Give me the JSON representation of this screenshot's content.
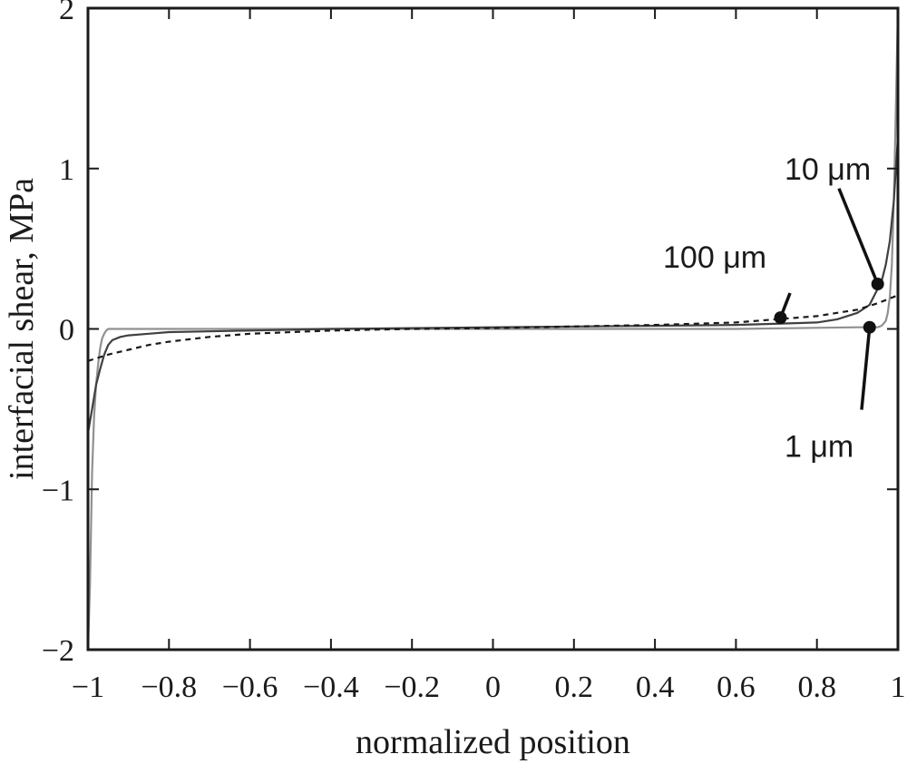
{
  "chart_data": {
    "type": "line",
    "title": "",
    "xlabel": "normalized position",
    "ylabel": "interfacial shear, MPa",
    "xlim": [
      -1,
      1
    ],
    "ylim": [
      -2,
      2
    ],
    "x_ticks": [
      {
        "value": -1,
        "label": "−1"
      },
      {
        "value": -0.8,
        "label": "−0.8"
      },
      {
        "value": -0.6,
        "label": "−0.6"
      },
      {
        "value": -0.4,
        "label": "−0.4"
      },
      {
        "value": -0.2,
        "label": "−0.2"
      },
      {
        "value": 0,
        "label": "0"
      },
      {
        "value": 0.2,
        "label": "0.2"
      },
      {
        "value": 0.4,
        "label": "0.4"
      },
      {
        "value": 0.6,
        "label": "0.6"
      },
      {
        "value": 0.8,
        "label": "0.8"
      },
      {
        "value": 1,
        "label": "1"
      }
    ],
    "y_ticks": [
      {
        "value": -2,
        "label": "−2"
      },
      {
        "value": -1,
        "label": "−1"
      },
      {
        "value": 0,
        "label": "0"
      },
      {
        "value": 1,
        "label": "1"
      },
      {
        "value": 2,
        "label": "2"
      }
    ],
    "grid": false,
    "legend": "none",
    "series": [
      {
        "name": "1 μm",
        "color": "#909090",
        "style": "solid",
        "points": [
          [
            -1,
            -2.0
          ],
          [
            -0.995,
            -1.6
          ],
          [
            -0.99,
            -0.9
          ],
          [
            -0.985,
            -0.55
          ],
          [
            -0.98,
            -0.35
          ],
          [
            -0.975,
            -0.22
          ],
          [
            -0.97,
            -0.12
          ],
          [
            -0.965,
            -0.06
          ],
          [
            -0.96,
            -0.03
          ],
          [
            -0.955,
            -0.01
          ],
          [
            -0.95,
            0.0
          ],
          [
            -0.9,
            0.0
          ],
          [
            -0.6,
            0.0
          ],
          [
            0,
            0.0
          ],
          [
            0.6,
            0.0
          ],
          [
            0.9,
            0.01
          ],
          [
            0.95,
            0.01
          ],
          [
            0.96,
            0.02
          ],
          [
            0.97,
            0.05
          ],
          [
            0.975,
            0.1
          ],
          [
            0.98,
            0.2
          ],
          [
            0.985,
            0.4
          ],
          [
            0.99,
            0.8
          ],
          [
            0.995,
            1.4
          ],
          [
            1,
            2.0
          ]
        ]
      },
      {
        "name": "10 μm",
        "color": "#404040",
        "style": "solid",
        "points": [
          [
            -1,
            -0.65
          ],
          [
            -0.99,
            -0.5
          ],
          [
            -0.98,
            -0.35
          ],
          [
            -0.97,
            -0.25
          ],
          [
            -0.96,
            -0.16
          ],
          [
            -0.95,
            -0.1
          ],
          [
            -0.94,
            -0.07
          ],
          [
            -0.92,
            -0.05
          ],
          [
            -0.9,
            -0.04
          ],
          [
            -0.85,
            -0.03
          ],
          [
            -0.8,
            -0.02
          ],
          [
            -0.6,
            -0.01
          ],
          [
            -0.4,
            0.0
          ],
          [
            0,
            0.01
          ],
          [
            0.4,
            0.02
          ],
          [
            0.6,
            0.025
          ],
          [
            0.8,
            0.04
          ],
          [
            0.85,
            0.06
          ],
          [
            0.9,
            0.1
          ],
          [
            0.93,
            0.15
          ],
          [
            0.95,
            0.25
          ],
          [
            0.96,
            0.3
          ],
          [
            0.97,
            0.4
          ],
          [
            0.98,
            0.55
          ],
          [
            0.99,
            0.8
          ],
          [
            1,
            1.2
          ]
        ]
      },
      {
        "name": "100 μm",
        "color": "#1a1a1a",
        "style": "dashed",
        "points": [
          [
            -1,
            -0.2
          ],
          [
            -0.95,
            -0.16
          ],
          [
            -0.9,
            -0.13
          ],
          [
            -0.85,
            -0.1
          ],
          [
            -0.8,
            -0.08
          ],
          [
            -0.7,
            -0.05
          ],
          [
            -0.6,
            -0.03
          ],
          [
            -0.4,
            -0.01
          ],
          [
            -0.2,
            0.0
          ],
          [
            0,
            0.005
          ],
          [
            0.2,
            0.015
          ],
          [
            0.4,
            0.025
          ],
          [
            0.6,
            0.04
          ],
          [
            0.7,
            0.06
          ],
          [
            0.8,
            0.08
          ],
          [
            0.85,
            0.1
          ],
          [
            0.9,
            0.12
          ],
          [
            0.95,
            0.16
          ],
          [
            1,
            0.21
          ]
        ]
      }
    ],
    "annotations": [
      {
        "text": "10 μm",
        "text_at": [
          0.72,
          1.0
        ],
        "point": [
          0.95,
          0.28
        ]
      },
      {
        "text": "100 μm",
        "text_at": [
          0.42,
          0.45
        ],
        "point": [
          0.71,
          0.07
        ]
      },
      {
        "text": "1 μm",
        "text_at": [
          0.72,
          -0.73
        ],
        "point": [
          0.93,
          0.01
        ]
      }
    ]
  }
}
